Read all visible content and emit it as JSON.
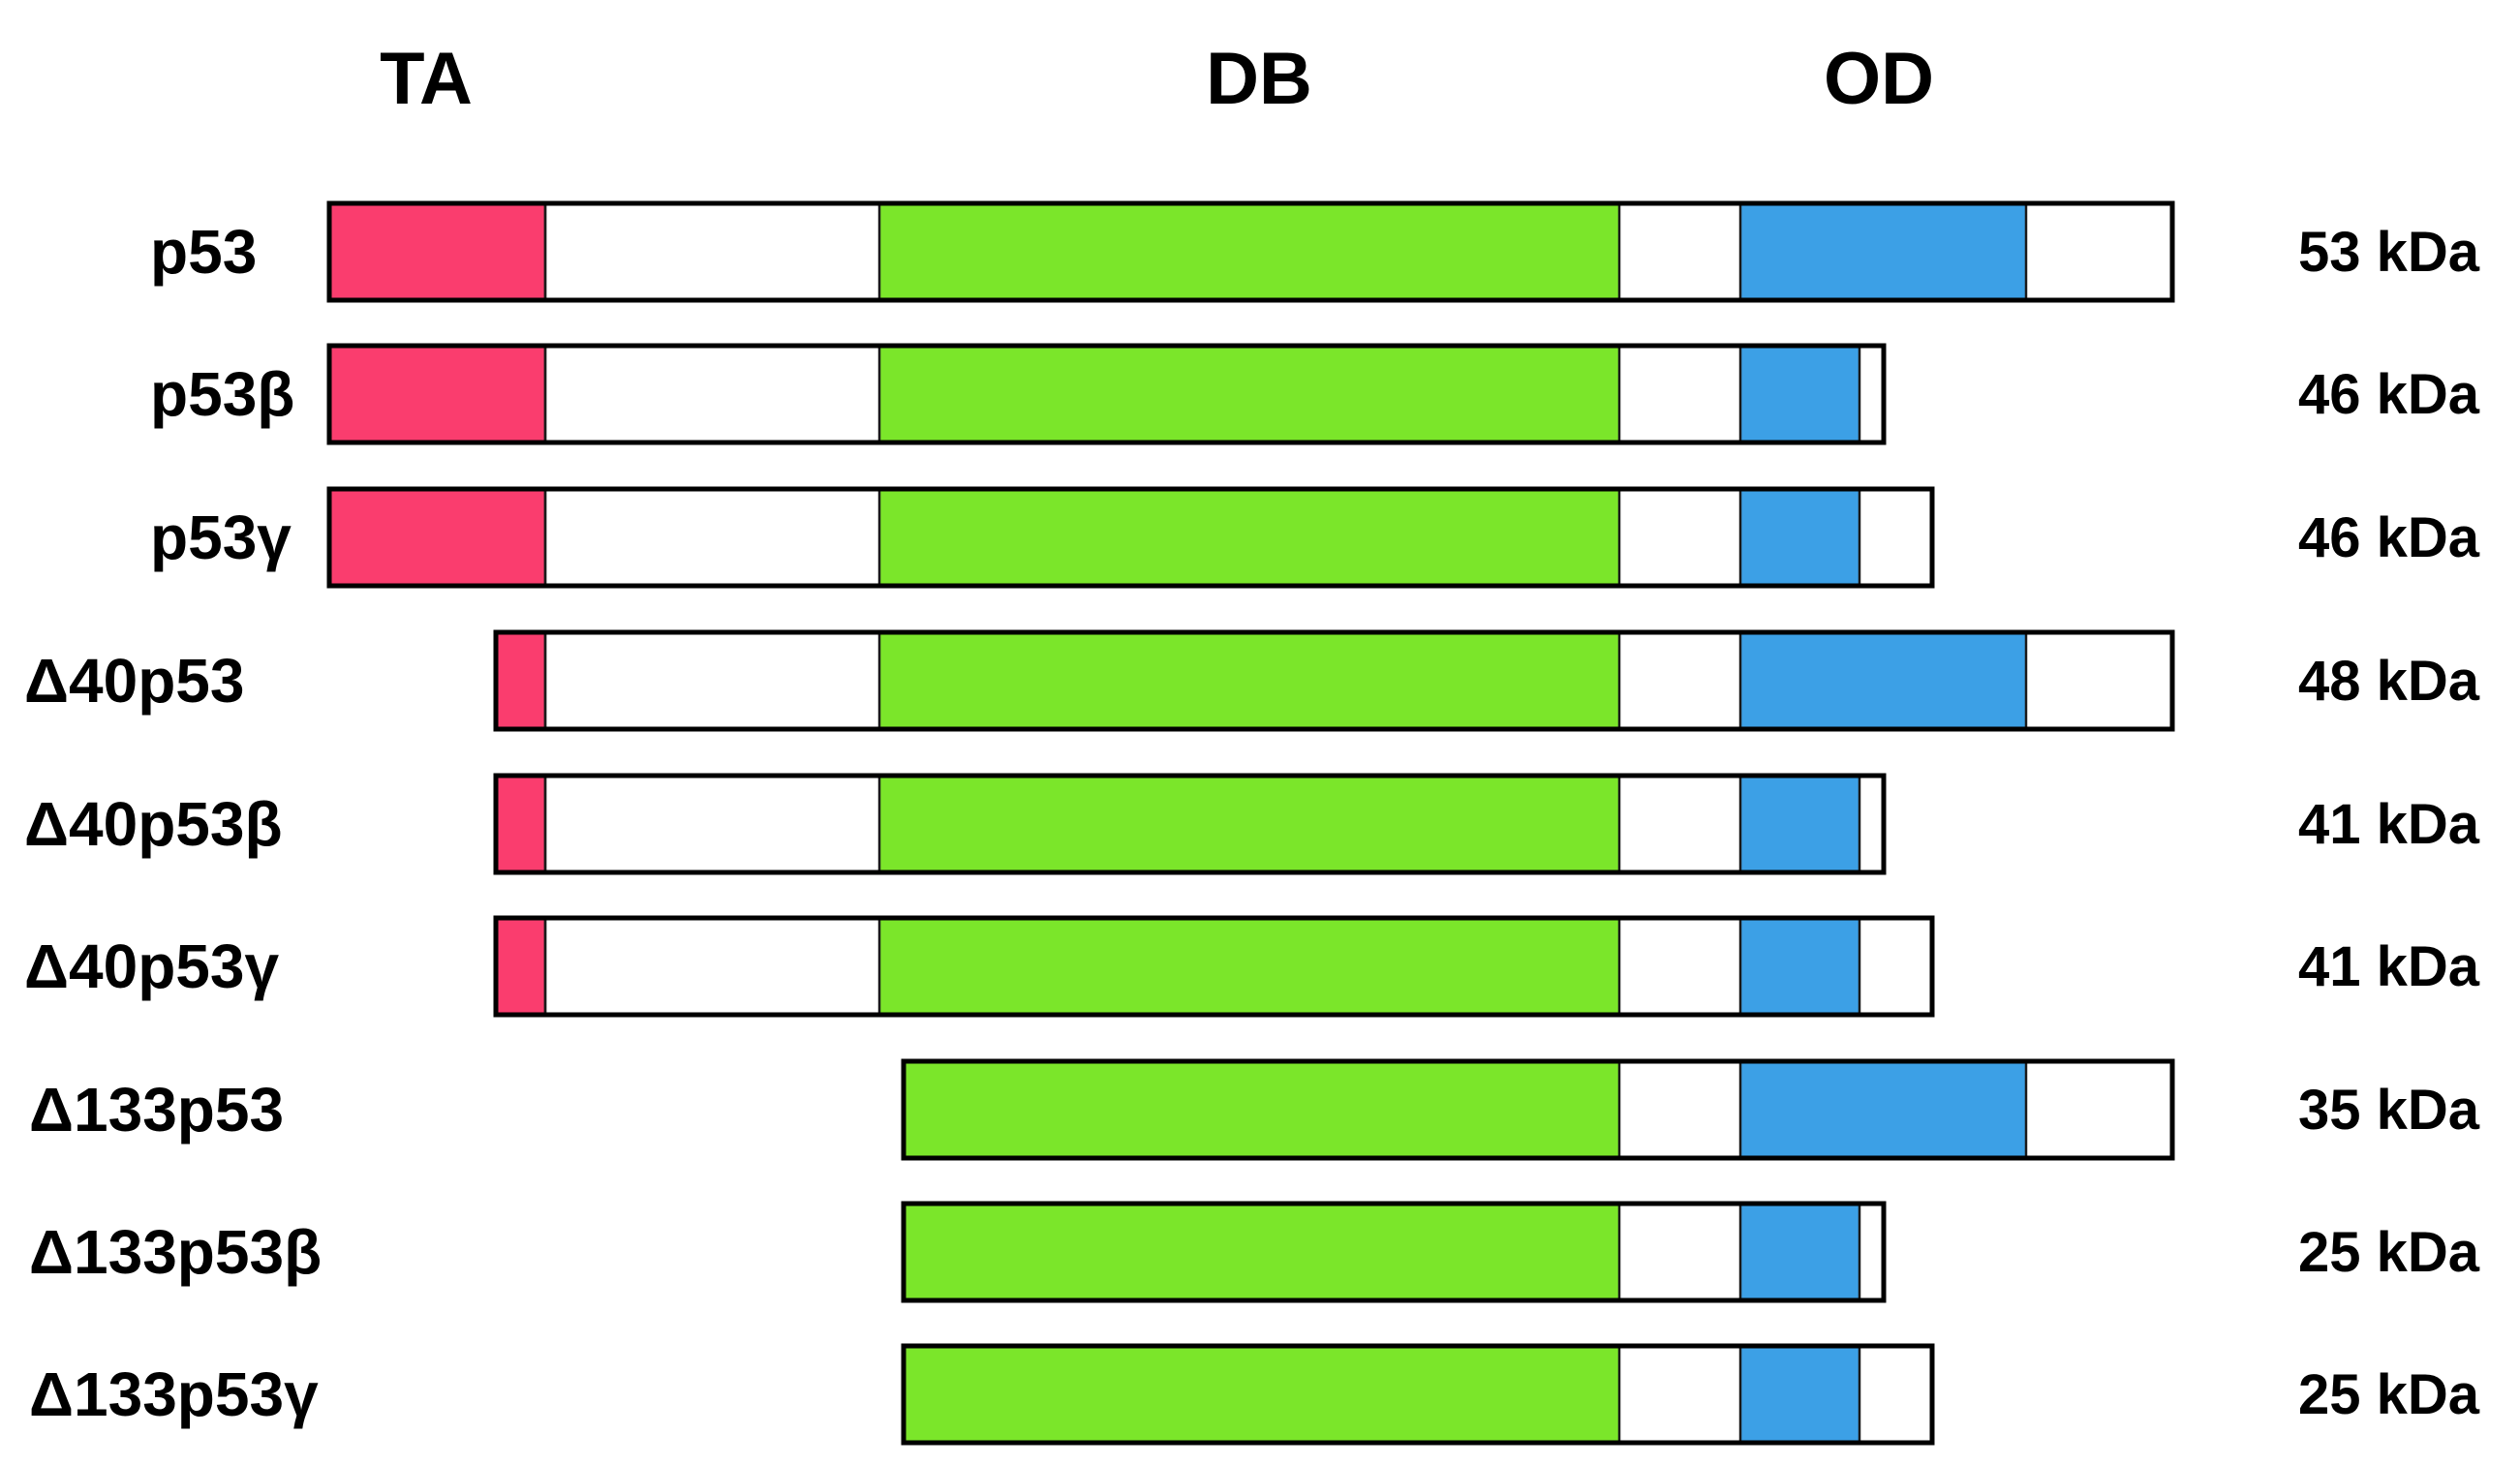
{
  "domains": [
    {
      "key": "ta",
      "label": "TA",
      "color": "#fa3d6e"
    },
    {
      "key": "db",
      "label": "DB",
      "color": "#7be62a"
    },
    {
      "key": "od",
      "label": "OD",
      "color": "#3ca0e6"
    }
  ],
  "isoforms": [
    {
      "key": "p53",
      "label": "p53",
      "mass": "53 kDa",
      "n_variant": "full",
      "c_variant": "alpha"
    },
    {
      "key": "p53-beta",
      "label": "p53β",
      "mass": "46 kDa",
      "n_variant": "full",
      "c_variant": "beta"
    },
    {
      "key": "p53-gamma",
      "label": "p53γ",
      "mass": "46 kDa",
      "n_variant": "full",
      "c_variant": "gamma"
    },
    {
      "key": "d40p53",
      "label": "Δ40p53",
      "mass": "48 kDa",
      "n_variant": "delta40",
      "c_variant": "alpha"
    },
    {
      "key": "d40p53-beta",
      "label": "Δ40p53β",
      "mass": "41 kDa",
      "n_variant": "delta40",
      "c_variant": "beta"
    },
    {
      "key": "d40p53-gamma",
      "label": "Δ40p53γ",
      "mass": "41 kDa",
      "n_variant": "delta40",
      "c_variant": "gamma"
    },
    {
      "key": "d133p53",
      "label": "Δ133p53",
      "mass": "35 kDa",
      "n_variant": "delta133",
      "c_variant": "alpha"
    },
    {
      "key": "d133p53-beta",
      "label": "Δ133p53β",
      "mass": "25 kDa",
      "n_variant": "delta133",
      "c_variant": "beta"
    },
    {
      "key": "d133p53-gamma",
      "label": "Δ133p53γ",
      "mass": "25 kDa",
      "n_variant": "delta133",
      "c_variant": "gamma"
    }
  ],
  "colors": {
    "linker": "#ffffff",
    "outline": "#000000"
  }
}
